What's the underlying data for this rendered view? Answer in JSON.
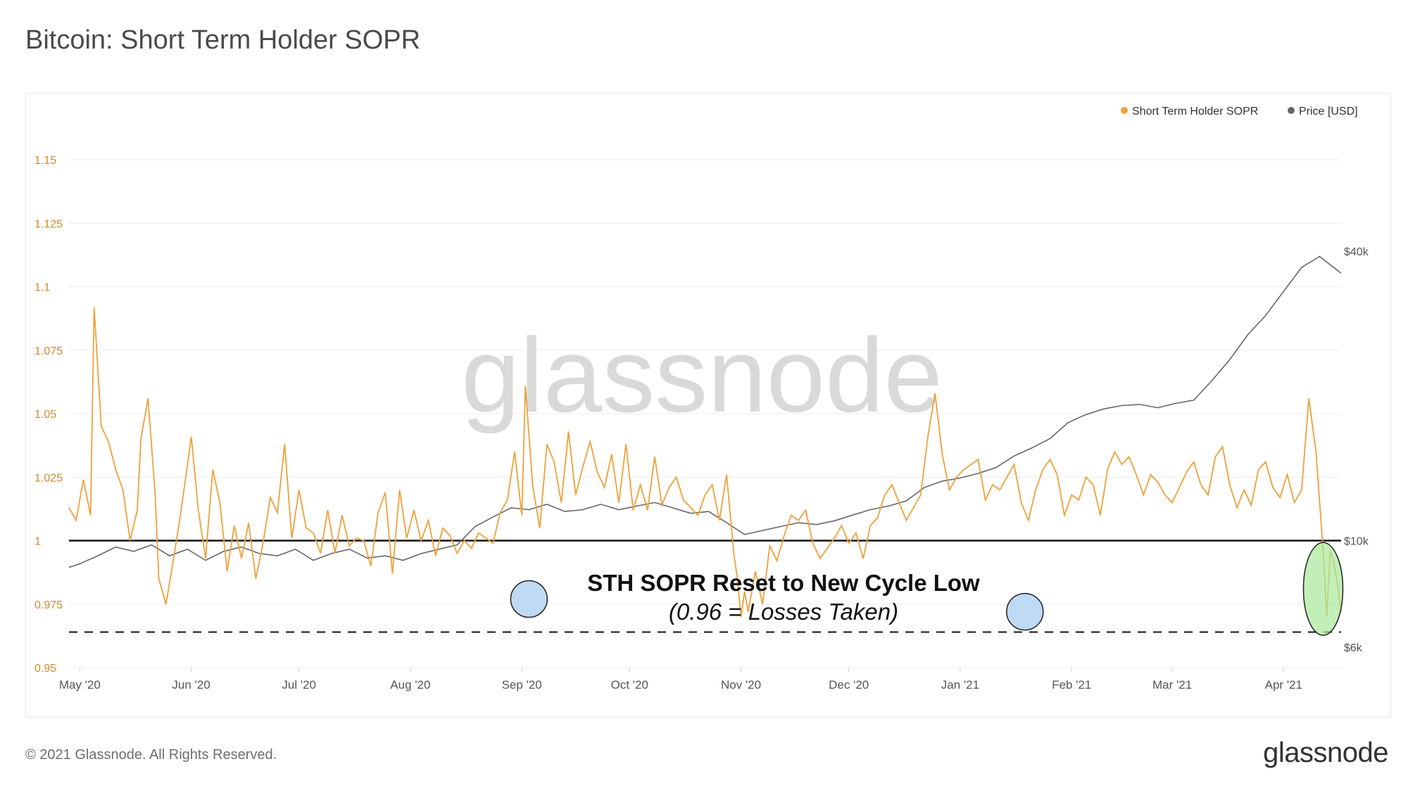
{
  "title": "Bitcoin: Short Term Holder SOPR",
  "footer": {
    "copyright": "© 2021 Glassnode. All Rights Reserved.",
    "logo": "glassnode"
  },
  "chart_data": {
    "type": "line",
    "title": "Bitcoin: Short Term Holder SOPR",
    "watermark": "glassnode",
    "legend": [
      {
        "name": "Short Term Holder SOPR",
        "color": "#f0a03a"
      },
      {
        "name": "Price [USD]",
        "color": "#666666"
      }
    ],
    "legend_position": "top-right",
    "x_ticks": [
      "May '20",
      "Jun '20",
      "Jul '20",
      "Aug '20",
      "Sep '20",
      "Oct '20",
      "Nov '20",
      "Dec '20",
      "Jan '21",
      "Feb '21",
      "Mar '21",
      "Apr '21"
    ],
    "x_range_days": [
      -3,
      351
    ],
    "y_left": {
      "ticks": [
        "0.95",
        "0.975",
        "1",
        "1.025",
        "1.05",
        "1.075",
        "1.1",
        "1.125",
        "1.15"
      ],
      "range": [
        0.95,
        1.17
      ]
    },
    "y_right": {
      "ticks": [
        "$6k",
        "$10k",
        "$40k"
      ],
      "scale": "log",
      "range": [
        6000,
        70000
      ]
    },
    "reference_lines": [
      {
        "value": 1.0,
        "style": "solid"
      },
      {
        "value": 0.964,
        "style": "dashed"
      }
    ],
    "annotation": {
      "title": "STH SOPR Reset to New Cycle Low",
      "subtitle": "(0.96 = Losses Taken)"
    },
    "highlights": [
      {
        "day": 125,
        "value": 0.977,
        "color": "blue"
      },
      {
        "day": 263,
        "value": 0.972,
        "color": "blue"
      },
      {
        "day": 346,
        "value": 0.981,
        "color": "green"
      }
    ],
    "series": [
      {
        "name": "Short Term Holder SOPR",
        "points": [
          [
            -3,
            1.013
          ],
          [
            -1,
            1.008
          ],
          [
            1,
            1.024
          ],
          [
            3,
            1.01
          ],
          [
            4,
            1.092
          ],
          [
            6,
            1.045
          ],
          [
            8,
            1.039
          ],
          [
            10,
            1.028
          ],
          [
            12,
            1.02
          ],
          [
            14,
            1.0
          ],
          [
            16,
            1.012
          ],
          [
            17,
            1.04
          ],
          [
            19,
            1.056
          ],
          [
            21,
            1.018
          ],
          [
            22,
            0.985
          ],
          [
            24,
            0.975
          ],
          [
            26,
            0.992
          ],
          [
            28,
            1.01
          ],
          [
            30,
            1.03
          ],
          [
            31,
            1.041
          ],
          [
            33,
            1.012
          ],
          [
            35,
            0.993
          ],
          [
            37,
            1.028
          ],
          [
            39,
            1.015
          ],
          [
            41,
            0.988
          ],
          [
            43,
            1.006
          ],
          [
            45,
            0.993
          ],
          [
            47,
            1.007
          ],
          [
            49,
            0.985
          ],
          [
            51,
            0.999
          ],
          [
            53,
            1.017
          ],
          [
            55,
            1.011
          ],
          [
            57,
            1.038
          ],
          [
            59,
            1.001
          ],
          [
            61,
            1.02
          ],
          [
            63,
            1.005
          ],
          [
            65,
            1.003
          ],
          [
            67,
            0.995
          ],
          [
            69,
            1.012
          ],
          [
            71,
            0.995
          ],
          [
            73,
            1.01
          ],
          [
            75,
            0.998
          ],
          [
            77,
            1.001
          ],
          [
            79,
            1.0
          ],
          [
            81,
            0.99
          ],
          [
            83,
            1.011
          ],
          [
            85,
            1.019
          ],
          [
            87,
            0.987
          ],
          [
            89,
            1.02
          ],
          [
            91,
            1.001
          ],
          [
            93,
            1.012
          ],
          [
            95,
            1.0
          ],
          [
            97,
            1.008
          ],
          [
            99,
            0.994
          ],
          [
            101,
            1.005
          ],
          [
            103,
            1.002
          ],
          [
            105,
            0.995
          ],
          [
            107,
            1.0
          ],
          [
            109,
            0.997
          ],
          [
            111,
            1.003
          ],
          [
            113,
            1.001
          ],
          [
            115,
            0.999
          ],
          [
            117,
            1.011
          ],
          [
            119,
            1.016
          ],
          [
            121,
            1.035
          ],
          [
            123,
            1.01
          ],
          [
            124,
            1.061
          ],
          [
            126,
            1.022
          ],
          [
            128,
            1.005
          ],
          [
            130,
            1.038
          ],
          [
            132,
            1.031
          ],
          [
            134,
            1.015
          ],
          [
            136,
            1.043
          ],
          [
            138,
            1.018
          ],
          [
            140,
            1.029
          ],
          [
            142,
            1.039
          ],
          [
            144,
            1.027
          ],
          [
            146,
            1.021
          ],
          [
            148,
            1.034
          ],
          [
            150,
            1.015
          ],
          [
            152,
            1.038
          ],
          [
            154,
            1.012
          ],
          [
            156,
            1.022
          ],
          [
            158,
            1.012
          ],
          [
            160,
            1.033
          ],
          [
            162,
            1.014
          ],
          [
            164,
            1.021
          ],
          [
            166,
            1.025
          ],
          [
            168,
            1.016
          ],
          [
            170,
            1.013
          ],
          [
            172,
            1.01
          ],
          [
            174,
            1.018
          ],
          [
            176,
            1.022
          ],
          [
            178,
            1.008
          ],
          [
            180,
            1.026
          ],
          [
            182,
            0.995
          ],
          [
            183,
            0.985
          ],
          [
            184,
            0.97
          ],
          [
            185,
            0.98
          ],
          [
            186,
            0.972
          ],
          [
            188,
            0.988
          ],
          [
            190,
            0.975
          ],
          [
            192,
            0.998
          ],
          [
            194,
            0.992
          ],
          [
            196,
            1.002
          ],
          [
            198,
            1.01
          ],
          [
            200,
            1.008
          ],
          [
            202,
            1.012
          ],
          [
            204,
            0.999
          ],
          [
            206,
            0.993
          ],
          [
            208,
            0.997
          ],
          [
            210,
            1.001
          ],
          [
            212,
            1.006
          ],
          [
            214,
            0.999
          ],
          [
            216,
            1.003
          ],
          [
            218,
            0.993
          ],
          [
            220,
            1.006
          ],
          [
            222,
            1.009
          ],
          [
            224,
            1.018
          ],
          [
            226,
            1.022
          ],
          [
            228,
            1.015
          ],
          [
            230,
            1.008
          ],
          [
            232,
            1.013
          ],
          [
            234,
            1.018
          ],
          [
            236,
            1.041
          ],
          [
            238,
            1.058
          ],
          [
            240,
            1.034
          ],
          [
            242,
            1.02
          ],
          [
            244,
            1.025
          ],
          [
            246,
            1.028
          ],
          [
            248,
            1.03
          ],
          [
            250,
            1.032
          ],
          [
            252,
            1.016
          ],
          [
            254,
            1.022
          ],
          [
            256,
            1.02
          ],
          [
            258,
            1.025
          ],
          [
            260,
            1.03
          ],
          [
            262,
            1.015
          ],
          [
            264,
            1.008
          ],
          [
            266,
            1.02
          ],
          [
            268,
            1.028
          ],
          [
            270,
            1.032
          ],
          [
            272,
            1.026
          ],
          [
            274,
            1.01
          ],
          [
            276,
            1.018
          ],
          [
            278,
            1.016
          ],
          [
            280,
            1.025
          ],
          [
            282,
            1.022
          ],
          [
            284,
            1.01
          ],
          [
            286,
            1.028
          ],
          [
            288,
            1.035
          ],
          [
            290,
            1.03
          ],
          [
            292,
            1.033
          ],
          [
            294,
            1.026
          ],
          [
            296,
            1.018
          ],
          [
            298,
            1.026
          ],
          [
            300,
            1.023
          ],
          [
            302,
            1.018
          ],
          [
            304,
            1.015
          ],
          [
            306,
            1.021
          ],
          [
            308,
            1.027
          ],
          [
            310,
            1.031
          ],
          [
            312,
            1.022
          ],
          [
            314,
            1.018
          ],
          [
            316,
            1.033
          ],
          [
            318,
            1.037
          ],
          [
            320,
            1.022
          ],
          [
            322,
            1.013
          ],
          [
            324,
            1.02
          ],
          [
            326,
            1.014
          ],
          [
            328,
            1.028
          ],
          [
            330,
            1.031
          ],
          [
            332,
            1.021
          ],
          [
            334,
            1.017
          ],
          [
            336,
            1.026
          ],
          [
            338,
            1.015
          ],
          [
            340,
            1.02
          ],
          [
            342,
            1.056
          ],
          [
            344,
            1.035
          ],
          [
            346,
            0.996
          ],
          [
            347,
            0.97
          ],
          [
            348,
            0.996
          ],
          [
            349,
            0.991
          ],
          [
            350,
            0.983
          ],
          [
            351,
            0.972
          ]
        ]
      },
      {
        "name": "Price [USD]",
        "points": [
          [
            -3,
            8800
          ],
          [
            0,
            8950
          ],
          [
            5,
            9300
          ],
          [
            10,
            9700
          ],
          [
            15,
            9500
          ],
          [
            20,
            9800
          ],
          [
            25,
            9300
          ],
          [
            30,
            9600
          ],
          [
            35,
            9100
          ],
          [
            40,
            9500
          ],
          [
            45,
            9700
          ],
          [
            50,
            9400
          ],
          [
            55,
            9300
          ],
          [
            60,
            9600
          ],
          [
            65,
            9100
          ],
          [
            70,
            9400
          ],
          [
            75,
            9600
          ],
          [
            80,
            9200
          ],
          [
            85,
            9300
          ],
          [
            90,
            9100
          ],
          [
            95,
            9400
          ],
          [
            100,
            9600
          ],
          [
            105,
            9800
          ],
          [
            110,
            10700
          ],
          [
            115,
            11200
          ],
          [
            120,
            11700
          ],
          [
            125,
            11600
          ],
          [
            130,
            11900
          ],
          [
            135,
            11500
          ],
          [
            140,
            11600
          ],
          [
            145,
            11900
          ],
          [
            150,
            11600
          ],
          [
            155,
            11800
          ],
          [
            160,
            12000
          ],
          [
            165,
            11700
          ],
          [
            170,
            11400
          ],
          [
            175,
            11500
          ],
          [
            180,
            10900
          ],
          [
            185,
            10300
          ],
          [
            190,
            10500
          ],
          [
            195,
            10700
          ],
          [
            200,
            10900
          ],
          [
            205,
            10800
          ],
          [
            210,
            11000
          ],
          [
            215,
            11300
          ],
          [
            220,
            11600
          ],
          [
            225,
            11800
          ],
          [
            230,
            12100
          ],
          [
            235,
            12900
          ],
          [
            240,
            13300
          ],
          [
            245,
            13500
          ],
          [
            250,
            13800
          ],
          [
            255,
            14200
          ],
          [
            260,
            15000
          ],
          [
            265,
            15600
          ],
          [
            270,
            16300
          ],
          [
            275,
            17600
          ],
          [
            280,
            18300
          ],
          [
            285,
            18800
          ],
          [
            290,
            19100
          ],
          [
            295,
            19200
          ],
          [
            300,
            18900
          ],
          [
            305,
            19300
          ],
          [
            310,
            19600
          ],
          [
            315,
            21500
          ],
          [
            320,
            23800
          ],
          [
            325,
            26800
          ],
          [
            330,
            29400
          ],
          [
            335,
            33000
          ],
          [
            340,
            37000
          ],
          [
            345,
            39000
          ],
          [
            351,
            36000
          ]
        ]
      }
    ]
  }
}
